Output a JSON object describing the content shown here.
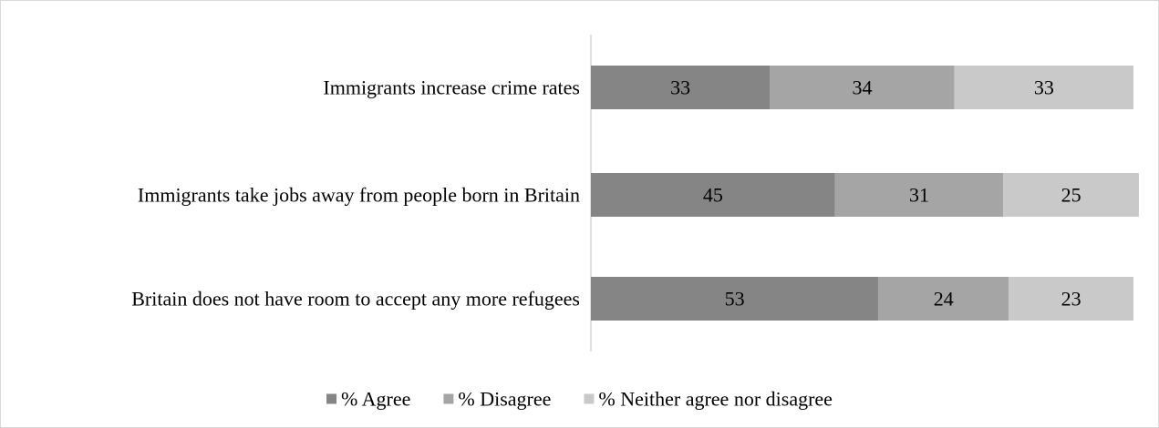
{
  "chart_data": {
    "type": "bar",
    "orientation": "horizontal",
    "stacked": true,
    "title": "",
    "xlabel": "",
    "ylabel": "",
    "xlim": [
      0,
      100
    ],
    "grid": false,
    "legend_position": "bottom",
    "categories": [
      "Immigrants increase crime rates",
      "Immigrants take jobs away from people born in Britain",
      "Britain does not have room to accept any more refugees"
    ],
    "series": [
      {
        "name": "% Agree",
        "color": "#858585",
        "values": [
          33,
          45,
          53
        ]
      },
      {
        "name": "% Disagree",
        "color": "#a5a5a5",
        "values": [
          34,
          31,
          24
        ]
      },
      {
        "name": "% Neither agree nor disagree",
        "color": "#c9c9c9",
        "values": [
          33,
          25,
          23
        ]
      }
    ]
  }
}
